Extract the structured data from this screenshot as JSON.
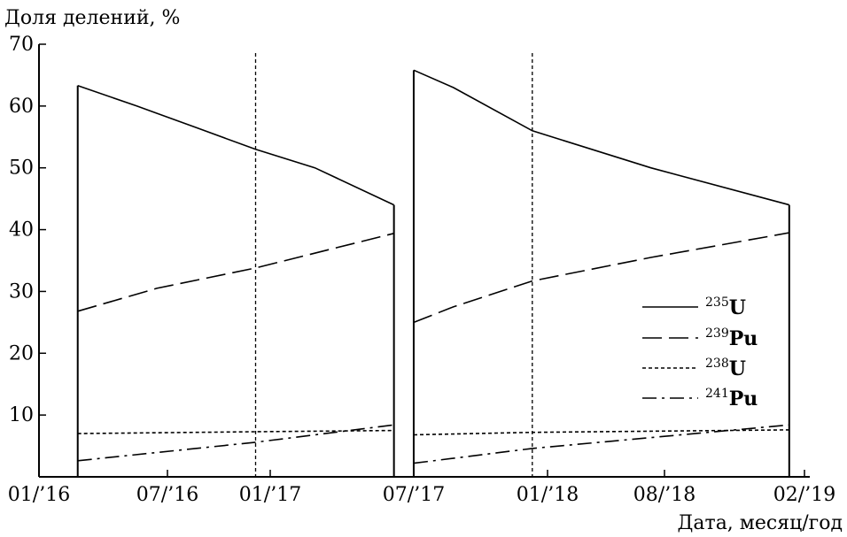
{
  "chart_data": {
    "type": "line",
    "ylabel": "Доля делений, %",
    "xlabel": "Дата, месяц/год",
    "ylim": [
      0,
      70
    ],
    "y_ticks": [
      10,
      20,
      30,
      40,
      50,
      60,
      70
    ],
    "x_ticks": [
      "01/’16",
      "07/’16",
      "01/’17",
      "07/’17",
      "01/’18",
      "08/’18",
      "02/’19"
    ],
    "xlim_months": [
      2015.92,
      2019.17
    ],
    "grid": false,
    "legend_position": "right",
    "vlines": [
      "2016-11",
      "2018-01"
    ],
    "legend": [
      {
        "mass": "235",
        "element": "U",
        "dash": "solid"
      },
      {
        "mass": "239",
        "element": "Pu",
        "dash": "long-dash"
      },
      {
        "mass": "238",
        "element": "U",
        "dash": "short-dash"
      },
      {
        "mass": "241",
        "element": "Pu",
        "dash": "dash-dot"
      }
    ],
    "cycles": [
      {
        "start": "2016-02",
        "end": "2017-06"
      },
      {
        "start": "2017-07",
        "end": "2019-02"
      }
    ],
    "series": [
      {
        "legend_index": 0,
        "cycle": 0,
        "x": [
          "2016-02",
          "2016-05",
          "2016-08",
          "2016-11",
          "2017-02",
          "2017-06"
        ],
        "y": [
          63.3,
          60,
          56.5,
          53,
          50,
          44
        ]
      },
      {
        "legend_index": 0,
        "cycle": 1,
        "x": [
          "2017-07",
          "2017-09",
          "2018-01",
          "2018-07",
          "2019-02"
        ],
        "y": [
          65.8,
          63,
          56,
          50,
          44
        ]
      },
      {
        "legend_index": 1,
        "cycle": 0,
        "x": [
          "2016-02",
          "2016-06",
          "2016-11",
          "2017-06"
        ],
        "y": [
          26.8,
          30.5,
          33.8,
          39.4
        ]
      },
      {
        "legend_index": 1,
        "cycle": 1,
        "x": [
          "2017-07",
          "2017-09",
          "2018-01",
          "2018-07",
          "2019-02"
        ],
        "y": [
          25,
          27.5,
          31.7,
          35.5,
          39.5
        ]
      },
      {
        "legend_index": 2,
        "cycle": 0,
        "x": [
          "2016-02",
          "2016-11",
          "2017-06"
        ],
        "y": [
          7,
          7.3,
          7.5
        ]
      },
      {
        "legend_index": 2,
        "cycle": 1,
        "x": [
          "2017-07",
          "2018-01",
          "2019-02"
        ],
        "y": [
          6.8,
          7.2,
          7.6
        ]
      },
      {
        "legend_index": 3,
        "cycle": 0,
        "x": [
          "2016-02",
          "2016-11",
          "2017-06"
        ],
        "y": [
          2.6,
          5.6,
          8.4
        ]
      },
      {
        "legend_index": 3,
        "cycle": 1,
        "x": [
          "2017-07",
          "2018-01",
          "2019-02"
        ],
        "y": [
          2.2,
          4.6,
          8.4
        ]
      }
    ]
  }
}
